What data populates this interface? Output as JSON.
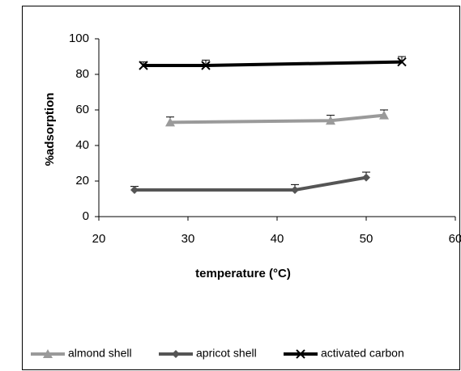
{
  "chart_data": {
    "type": "line",
    "x_label": "temperature (°C)",
    "y_label": "%adsorption",
    "xlim": [
      20,
      60
    ],
    "xticks": [
      20,
      30,
      40,
      50,
      60
    ],
    "ylim": [
      0,
      100
    ],
    "yticks": [
      0,
      20,
      40,
      60,
      80,
      100
    ],
    "legend": "bottom",
    "series": [
      {
        "name": "almond shell",
        "color": "#9a9a9a",
        "marker": "triangle",
        "x": [
          28,
          46,
          52
        ],
        "values": [
          53,
          54,
          57
        ],
        "errors": [
          3,
          3,
          3
        ]
      },
      {
        "name": "apricot shell",
        "color": "#555555",
        "marker": "diamond",
        "x": [
          24,
          42,
          50
        ],
        "values": [
          15,
          15,
          22
        ],
        "errors": [
          2,
          3,
          3
        ]
      },
      {
        "name": "activated carbon",
        "color": "#000000",
        "marker": "x",
        "x": [
          25,
          32,
          54
        ],
        "values": [
          85,
          85,
          87
        ],
        "errors": [
          2,
          3,
          3
        ]
      }
    ]
  }
}
